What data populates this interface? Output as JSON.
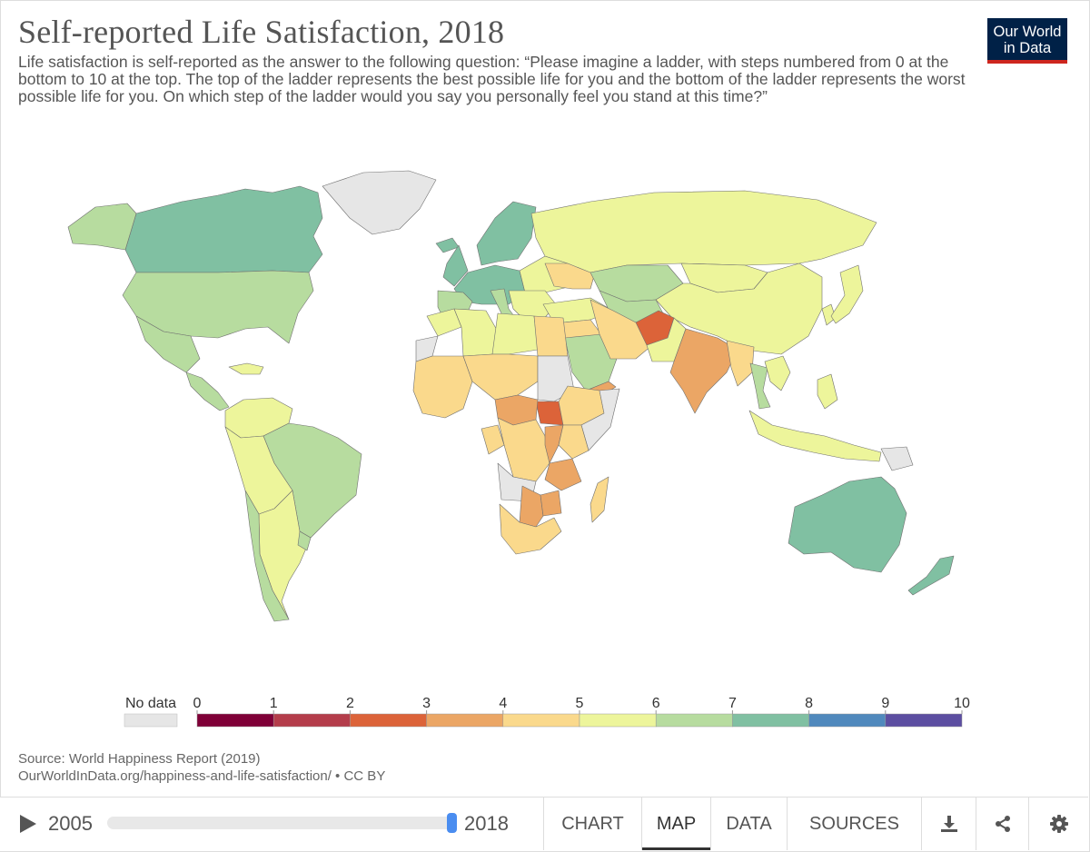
{
  "title": "Self-reported Life Satisfaction, 2018",
  "subtitle": "Life satisfaction is self-reported as the answer to the following question: “Please imagine a ladder, with steps numbered from 0 at the bottom to 10 at the top. The top of the ladder represents the best possible life for you and the bottom of the ladder represents the worst possible life for you. On which step of the ladder would you say you personally feel you stand at this time?”",
  "logo": {
    "line1": "Our World",
    "line2": "in Data"
  },
  "legend": {
    "no_data_label": "No data",
    "no_data_color": "#e6e6e6",
    "ticks": [
      "0",
      "1",
      "2",
      "3",
      "4",
      "5",
      "6",
      "7",
      "8",
      "9",
      "10"
    ],
    "bins": [
      {
        "from": 0,
        "to": 1,
        "color": "#7f0037"
      },
      {
        "from": 1,
        "to": 2,
        "color": "#b43d4b"
      },
      {
        "from": 2,
        "to": 3,
        "color": "#dc6339"
      },
      {
        "from": 3,
        "to": 4,
        "color": "#eba665"
      },
      {
        "from": 4,
        "to": 5,
        "color": "#fad98c"
      },
      {
        "from": 5,
        "to": 6,
        "color": "#edf59b"
      },
      {
        "from": 6,
        "to": 7,
        "color": "#b7dc9f"
      },
      {
        "from": 7,
        "to": 8,
        "color": "#80c0a2"
      },
      {
        "from": 8,
        "to": 9,
        "color": "#5089bd"
      },
      {
        "from": 9,
        "to": 10,
        "color": "#5c4ea1"
      }
    ]
  },
  "map": {
    "ocean": "#ffffff",
    "border": "#707070",
    "regions": [
      {
        "name": "Canada",
        "value": 7.3
      },
      {
        "name": "United States",
        "value": 6.9
      },
      {
        "name": "Alaska",
        "value": 6.9
      },
      {
        "name": "Greenland",
        "value": null
      },
      {
        "name": "Mexico",
        "value": 6.5
      },
      {
        "name": "Central America",
        "value": 6.2
      },
      {
        "name": "Caribbean",
        "value": 5.5
      },
      {
        "name": "Colombia & Venezuela",
        "value": 5.8
      },
      {
        "name": "Brazil",
        "value": 6.2
      },
      {
        "name": "Peru & Bolivia",
        "value": 5.7
      },
      {
        "name": "Argentina",
        "value": 5.8
      },
      {
        "name": "Chile",
        "value": 6.4
      },
      {
        "name": "Uruguay",
        "value": 6.4
      },
      {
        "name": "Scandinavia",
        "value": 7.5
      },
      {
        "name": "Iceland",
        "value": 7.5
      },
      {
        "name": "United Kingdom",
        "value": 7.1
      },
      {
        "name": "Western Europe",
        "value": 7.0
      },
      {
        "name": "Iberia",
        "value": 6.3
      },
      {
        "name": "Italy",
        "value": 6.2
      },
      {
        "name": "Eastern Europe",
        "value": 5.9
      },
      {
        "name": "Ukraine",
        "value": 4.6
      },
      {
        "name": "Balkans",
        "value": 5.5
      },
      {
        "name": "Turkey",
        "value": 5.2
      },
      {
        "name": "Russia",
        "value": 5.6
      },
      {
        "name": "Kazakhstan",
        "value": 6.0
      },
      {
        "name": "Central Asia",
        "value": 6.0
      },
      {
        "name": "Mongolia",
        "value": 5.4
      },
      {
        "name": "China",
        "value": 5.1
      },
      {
        "name": "Korea",
        "value": 5.9
      },
      {
        "name": "Japan",
        "value": 5.9
      },
      {
        "name": "Middle East",
        "value": 4.6
      },
      {
        "name": "Saudi Arabia",
        "value": 6.4
      },
      {
        "name": "Yemen",
        "value": 3.1
      },
      {
        "name": "Iran",
        "value": 4.6
      },
      {
        "name": "Afghanistan",
        "value": 2.7
      },
      {
        "name": "Pakistan",
        "value": 5.6
      },
      {
        "name": "India",
        "value": 3.8
      },
      {
        "name": "Bangladesh & Myanmar",
        "value": 4.4
      },
      {
        "name": "Thailand",
        "value": 6.0
      },
      {
        "name": "Southeast Asia",
        "value": 5.3
      },
      {
        "name": "Indonesia",
        "value": 5.3
      },
      {
        "name": "Philippines",
        "value": 5.9
      },
      {
        "name": "Papua New Guinea",
        "value": null
      },
      {
        "name": "Australia",
        "value": 7.2
      },
      {
        "name": "New Zealand",
        "value": 7.3
      },
      {
        "name": "Morocco",
        "value": 5.3
      },
      {
        "name": "Algeria",
        "value": 5.2
      },
      {
        "name": "Libya",
        "value": 5.5
      },
      {
        "name": "Egypt",
        "value": 4.2
      },
      {
        "name": "Western Sahara",
        "value": null
      },
      {
        "name": "West Africa",
        "value": 4.6
      },
      {
        "name": "Sahel",
        "value": 4.8
      },
      {
        "name": "Sudan",
        "value": null
      },
      {
        "name": "South Sudan",
        "value": 2.6
      },
      {
        "name": "Ethiopia",
        "value": 4.3
      },
      {
        "name": "Somalia",
        "value": null
      },
      {
        "name": "Central Africa",
        "value": 3.2
      },
      {
        "name": "Congo Basin",
        "value": 4.4
      },
      {
        "name": "Gabon & Congo",
        "value": 4.8
      },
      {
        "name": "East Africa",
        "value": 3.4
      },
      {
        "name": "Kenya",
        "value": 4.5
      },
      {
        "name": "Tanzania",
        "value": 3.4
      },
      {
        "name": "Angola",
        "value": null
      },
      {
        "name": "Southern Africa",
        "value": 3.5
      },
      {
        "name": "Zimbabwe",
        "value": 3.6
      },
      {
        "name": "South Africa",
        "value": 4.7
      },
      {
        "name": "Madagascar",
        "value": 4.1
      }
    ]
  },
  "source": {
    "line1": "Source: World Happiness Report (2019)",
    "line2": "OurWorldInData.org/happiness-and-life-satisfaction/ • CC BY"
  },
  "controls": {
    "start_year": "2005",
    "end_year": "2018",
    "tabs": [
      "CHART",
      "MAP",
      "DATA",
      "SOURCES"
    ],
    "active_tab": "MAP"
  }
}
